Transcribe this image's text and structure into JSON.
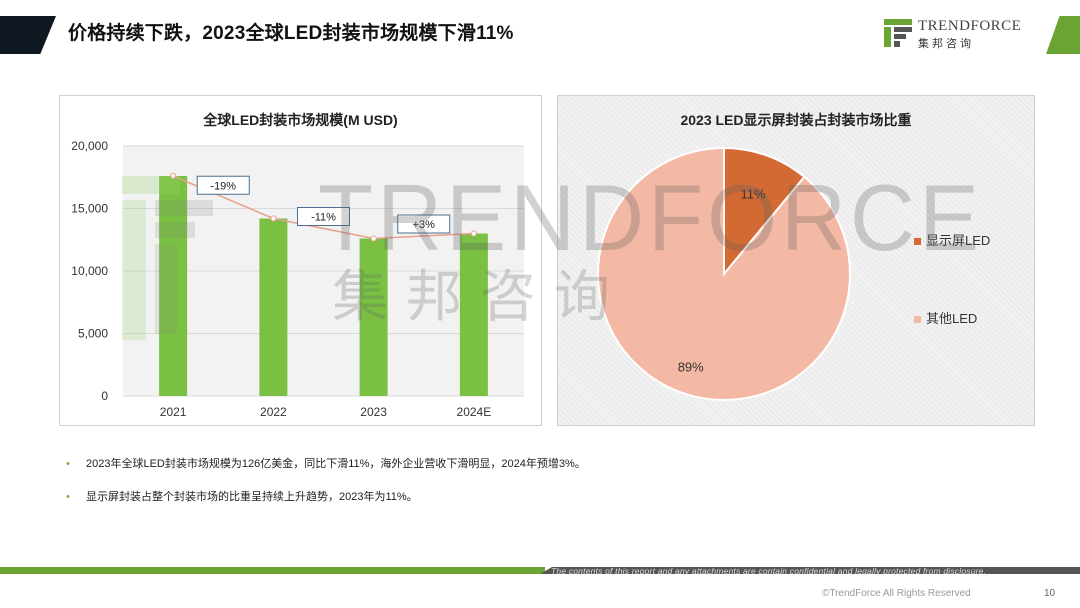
{
  "slide": {
    "title": "价格持续下跌，2023全球LED封装市场规模下滑11%",
    "logo_name": "TRENDFORCE",
    "logo_sub": "集邦咨询",
    "watermark_name": "TRENDFORCE",
    "watermark_sub": "集邦咨询",
    "bullets": [
      "2023年全球LED封装市场规模为126亿美金，同比下滑11%，海外企业营收下滑明显，2024年预增3%。",
      "显示屏封装占整个封装市场的比重呈持续上升趋势，2023年为11%。"
    ],
    "bullet_symbol": "•",
    "disclaimer": "The contents of this report and any attachments are contain confidential and legally protected from disclosure.",
    "copyright": "©TrendForce All Rights Reserved",
    "page_number": "10"
  },
  "colors": {
    "bar": "#7ac143",
    "line": "#ea9f8e",
    "pie_display": "#d46a33",
    "pie_other": "#f4b9a4",
    "accent_green": "#6aa533",
    "dark": "#0f1721"
  },
  "chart_data": [
    {
      "type": "bar",
      "title": "全球LED封装市场规模(M USD)",
      "categories": [
        "2021",
        "2022",
        "2023",
        "2024E"
      ],
      "values": [
        17600,
        14200,
        12600,
        13000
      ],
      "ylim": [
        0,
        20000
      ],
      "yticks": [
        0,
        5000,
        10000,
        15000,
        20000
      ],
      "ytick_labels": [
        "0",
        "5,000",
        "10,000",
        "15,000",
        "20,000"
      ],
      "growth_labels": [
        "-19%",
        "-11%",
        "+3%"
      ],
      "grid": true
    },
    {
      "type": "pie",
      "title": "2023 LED显示屏封装占封装市场比重",
      "labels": [
        "显示屏LED",
        "其他LED"
      ],
      "values": [
        11,
        89
      ],
      "value_labels": [
        "11%",
        "89%"
      ],
      "legend_position": "right"
    }
  ]
}
